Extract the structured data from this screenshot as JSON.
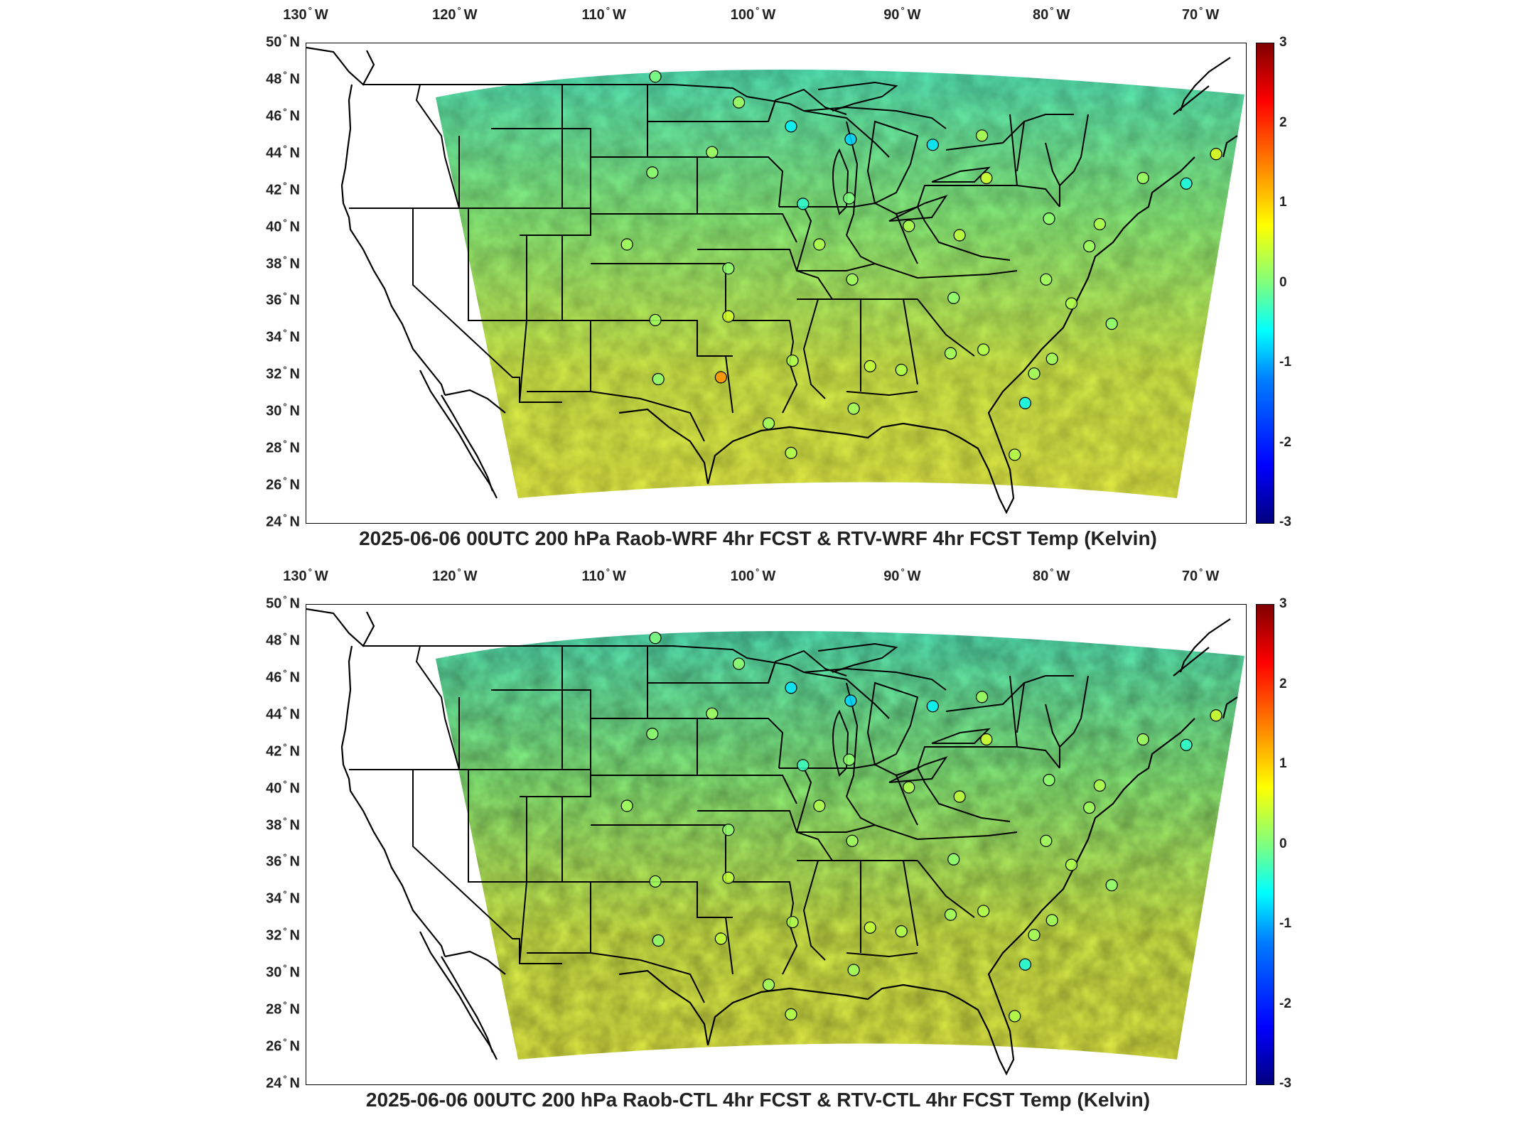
{
  "panels": [
    {
      "title": "2025-06-06 00UTC 200 hPa Raob-WRF 4hr FCST & RTV-WRF 4hr FCST Temp (Kelvin)",
      "station_color": "#f0a020"
    },
    {
      "title": "2025-06-06 00UTC 200 hPa Raob-CTL 4hr FCST & RTV-CTL 4hr FCST Temp (Kelvin)",
      "station_color": "#c8e060"
    }
  ],
  "lon_labels": [
    {
      "num": "130",
      "dir": "W"
    },
    {
      "num": "120",
      "dir": "W"
    },
    {
      "num": "110",
      "dir": "W"
    },
    {
      "num": "100",
      "dir": "W"
    },
    {
      "num": "90",
      "dir": "W"
    },
    {
      "num": "80",
      "dir": "W"
    },
    {
      "num": "70",
      "dir": "W"
    }
  ],
  "lat_labels": [
    {
      "num": "50",
      "dir": "N"
    },
    {
      "num": "48",
      "dir": "N"
    },
    {
      "num": "46",
      "dir": "N"
    },
    {
      "num": "44",
      "dir": "N"
    },
    {
      "num": "42",
      "dir": "N"
    },
    {
      "num": "40",
      "dir": "N"
    },
    {
      "num": "38",
      "dir": "N"
    },
    {
      "num": "36",
      "dir": "N"
    },
    {
      "num": "34",
      "dir": "N"
    },
    {
      "num": "32",
      "dir": "N"
    },
    {
      "num": "30",
      "dir": "N"
    },
    {
      "num": "28",
      "dir": "N"
    },
    {
      "num": "26",
      "dir": "N"
    },
    {
      "num": "24",
      "dir": "N"
    }
  ],
  "colorbar": {
    "min": -3,
    "max": 3,
    "tick_labels": [
      "3",
      "2",
      "1",
      "0",
      "-1",
      "-2",
      "-3"
    ],
    "colormap": "jet"
  },
  "map_extent": {
    "lon": [
      -130,
      -67
    ],
    "lat": [
      24,
      50
    ]
  }
}
